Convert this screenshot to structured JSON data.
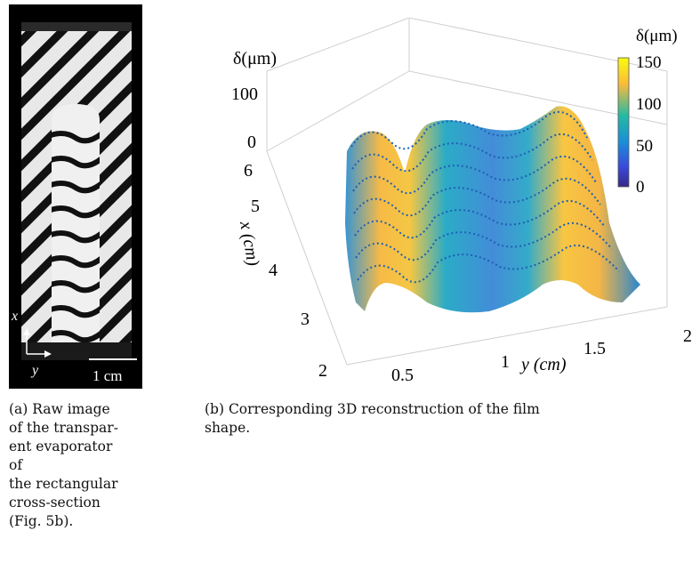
{
  "panel_a": {
    "axis_x": "x",
    "axis_y": "y",
    "scale_label": "1 cm",
    "caption_lines": [
      "(a) Raw image",
      "of the transpar-",
      "ent evaporator",
      "of",
      "the rectangular",
      "cross-section",
      "(Fig. 5b)."
    ]
  },
  "panel_b": {
    "caption_lines": [
      "(b) Corresponding 3D reconstruction of the film",
      "shape."
    ],
    "z_label": "δ(μm)",
    "z_ticks": [
      "100",
      "0"
    ],
    "x_label": "x (cm)",
    "x_ticks": [
      "6",
      "5",
      "4",
      "3",
      "2"
    ],
    "y_label": "y (cm)",
    "y_ticks": [
      "0.5",
      "1",
      "1.5",
      "2"
    ],
    "colorbar": {
      "label": "δ(μm)",
      "ticks": [
        "150",
        "100",
        "50",
        "0"
      ],
      "colors": [
        "#f9fb0e",
        "#fcbc3a",
        "#25b9a5",
        "#1a8fd8",
        "#3a48d8",
        "#352a87"
      ]
    }
  }
}
